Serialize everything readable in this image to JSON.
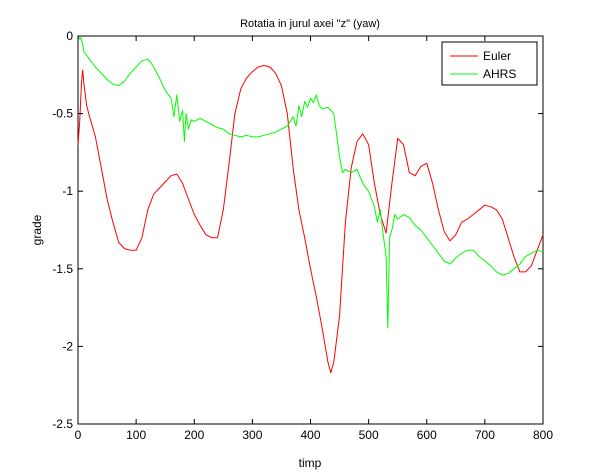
{
  "chart_data": {
    "type": "line",
    "title": "Rotatia in jurul axei \"z\" (yaw)",
    "xlabel": "timp",
    "ylabel": "grade",
    "xlim": [
      0,
      800
    ],
    "ylim": [
      -2.5,
      0
    ],
    "xticks": [
      0,
      100,
      200,
      300,
      400,
      500,
      600,
      700,
      800
    ],
    "xtick_labels": [
      "0",
      "100",
      "200",
      "300",
      "400",
      "500",
      "600",
      "700",
      "800"
    ],
    "yticks": [
      0,
      -0.5,
      -1,
      -1.5,
      -2,
      -2.5
    ],
    "ytick_labels": [
      "0",
      "-0.5",
      "-1",
      "-1.5",
      "-2",
      "-2.5"
    ],
    "grid": false,
    "legend_position": "top-right",
    "series": [
      {
        "name": "Euler",
        "color": "#ff0000",
        "x": [
          0,
          3,
          6,
          8,
          10,
          15,
          20,
          30,
          40,
          50,
          60,
          70,
          80,
          90,
          100,
          110,
          120,
          130,
          140,
          150,
          160,
          170,
          180,
          190,
          200,
          210,
          220,
          230,
          240,
          250,
          260,
          270,
          280,
          290,
          300,
          310,
          320,
          330,
          340,
          350,
          360,
          370,
          380,
          390,
          400,
          410,
          420,
          430,
          435,
          440,
          450,
          460,
          470,
          480,
          490,
          500,
          510,
          520,
          530,
          540,
          550,
          560,
          570,
          580,
          590,
          600,
          610,
          620,
          630,
          640,
          650,
          660,
          670,
          680,
          690,
          700,
          710,
          720,
          730,
          740,
          750,
          760,
          770,
          780,
          790,
          800
        ],
        "y": [
          -0.7,
          -0.55,
          -0.3,
          -0.22,
          -0.3,
          -0.45,
          -0.52,
          -0.65,
          -0.85,
          -1.05,
          -1.2,
          -1.33,
          -1.37,
          -1.38,
          -1.38,
          -1.3,
          -1.12,
          -1.02,
          -0.98,
          -0.94,
          -0.9,
          -0.89,
          -0.95,
          -1.05,
          -1.15,
          -1.22,
          -1.28,
          -1.3,
          -1.3,
          -1.12,
          -0.82,
          -0.5,
          -0.34,
          -0.27,
          -0.23,
          -0.2,
          -0.19,
          -0.2,
          -0.24,
          -0.32,
          -0.5,
          -0.85,
          -1.12,
          -1.3,
          -1.5,
          -1.68,
          -1.88,
          -2.1,
          -2.17,
          -2.1,
          -1.8,
          -1.2,
          -0.85,
          -0.68,
          -0.63,
          -0.7,
          -0.95,
          -1.15,
          -1.27,
          -0.95,
          -0.66,
          -0.7,
          -0.88,
          -0.9,
          -0.84,
          -0.82,
          -0.95,
          -1.12,
          -1.26,
          -1.32,
          -1.28,
          -1.2,
          -1.18,
          -1.15,
          -1.12,
          -1.09,
          -1.1,
          -1.12,
          -1.18,
          -1.3,
          -1.42,
          -1.52,
          -1.52,
          -1.48,
          -1.38,
          -1.28
        ]
      },
      {
        "name": "AHRS",
        "color": "#00ff00",
        "x": [
          0,
          3,
          5,
          8,
          10,
          20,
          30,
          40,
          50,
          60,
          70,
          80,
          90,
          100,
          110,
          120,
          125,
          130,
          140,
          150,
          160,
          165,
          170,
          175,
          180,
          183,
          186,
          190,
          195,
          200,
          210,
          220,
          230,
          240,
          250,
          260,
          270,
          280,
          290,
          300,
          310,
          320,
          330,
          340,
          350,
          360,
          370,
          375,
          380,
          385,
          390,
          395,
          400,
          405,
          410,
          415,
          420,
          430,
          440,
          450,
          455,
          460,
          470,
          480,
          490,
          500,
          505,
          510,
          515,
          520,
          525,
          530,
          533,
          536,
          540,
          545,
          550,
          560,
          570,
          580,
          590,
          600,
          610,
          620,
          630,
          640,
          650,
          660,
          670,
          680,
          690,
          700,
          710,
          720,
          730,
          740,
          750,
          760,
          770,
          780,
          790,
          800
        ],
        "y": [
          0,
          -0.02,
          -0.01,
          -0.05,
          -0.1,
          -0.15,
          -0.2,
          -0.24,
          -0.28,
          -0.31,
          -0.32,
          -0.29,
          -0.24,
          -0.2,
          -0.16,
          -0.15,
          -0.17,
          -0.2,
          -0.27,
          -0.35,
          -0.4,
          -0.52,
          -0.38,
          -0.55,
          -0.48,
          -0.68,
          -0.5,
          -0.6,
          -0.54,
          -0.55,
          -0.53,
          -0.55,
          -0.57,
          -0.59,
          -0.6,
          -0.63,
          -0.64,
          -0.65,
          -0.64,
          -0.65,
          -0.65,
          -0.64,
          -0.63,
          -0.62,
          -0.6,
          -0.58,
          -0.52,
          -0.58,
          -0.45,
          -0.52,
          -0.42,
          -0.46,
          -0.4,
          -0.43,
          -0.38,
          -0.45,
          -0.47,
          -0.46,
          -0.5,
          -0.78,
          -0.88,
          -0.86,
          -0.88,
          -0.86,
          -0.95,
          -1.0,
          -1.05,
          -1.1,
          -1.2,
          -1.12,
          -1.28,
          -1.42,
          -1.88,
          -1.3,
          -1.25,
          -1.15,
          -1.18,
          -1.15,
          -1.17,
          -1.22,
          -1.25,
          -1.3,
          -1.35,
          -1.4,
          -1.45,
          -1.47,
          -1.43,
          -1.4,
          -1.38,
          -1.38,
          -1.42,
          -1.45,
          -1.48,
          -1.52,
          -1.54,
          -1.53,
          -1.5,
          -1.47,
          -1.42,
          -1.4,
          -1.38,
          -1.39
        ]
      }
    ]
  }
}
